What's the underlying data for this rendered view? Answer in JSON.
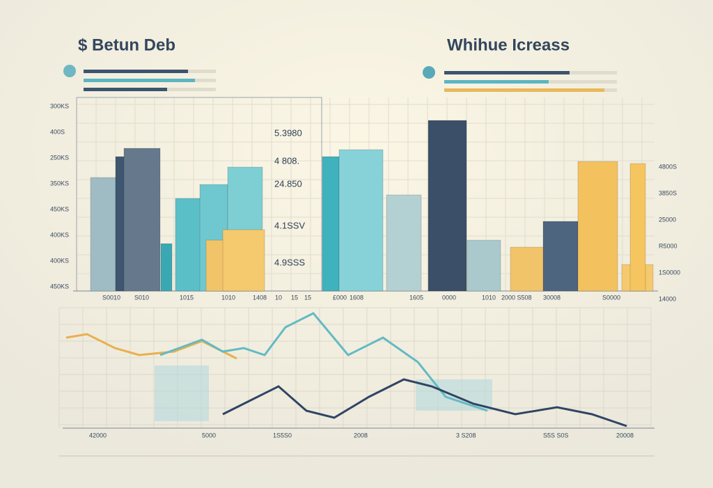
{
  "header": {
    "left_title": "$ Betun Deb",
    "right_title": "Whihue Icreass"
  },
  "top_chart": {
    "left_axis": [
      "300KS",
      "400S",
      "250KS",
      "350KS",
      "450KS",
      "400KS",
      "400KS",
      "450KS"
    ],
    "floating_labels": [
      "5.3980",
      "4 808.",
      "24.850",
      "4.1SSV",
      "4.9SSS"
    ],
    "bottom_labels": [
      "S0010",
      "S010",
      "1015",
      "1010",
      "1408",
      "10",
      "15",
      "15",
      "£000",
      "1608",
      "1605",
      "0000",
      "1010",
      "2000 S508",
      "30008",
      "S0000"
    ],
    "right_axis": [
      "4800S",
      "3850S",
      "25000",
      "R5000",
      "1S0000",
      "14000"
    ]
  },
  "bottom_chart": {
    "x_labels": [
      "42000",
      "5000",
      "1S5S0",
      "2008",
      "3 S208",
      "S5S S0S",
      "20008"
    ]
  }
}
